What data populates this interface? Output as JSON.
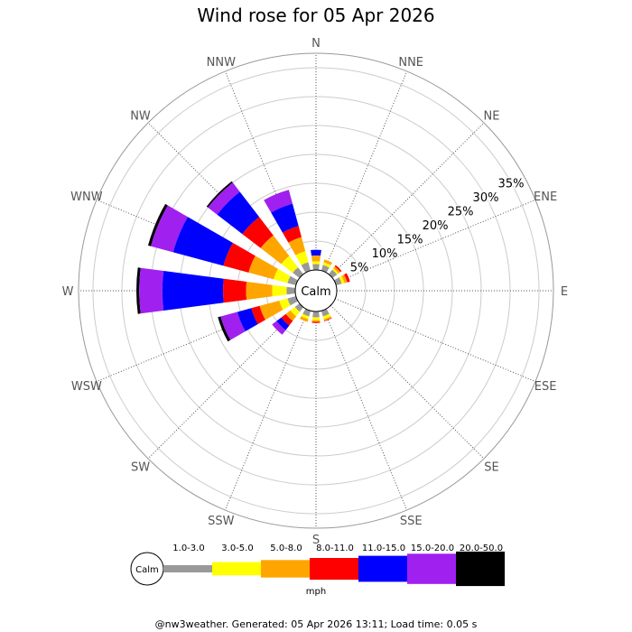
{
  "chart_data": {
    "type": "wind-rose",
    "title": "Wind rose for 05 Apr 2026",
    "directions": [
      "N",
      "NNE",
      "NE",
      "ENE",
      "E",
      "ESE",
      "SE",
      "SSE",
      "S",
      "SSW",
      "SW",
      "WSW",
      "W",
      "WNW",
      "NW",
      "NNW"
    ],
    "rings": [
      "5%",
      "10%",
      "15%",
      "20%",
      "25%",
      "30%",
      "35%"
    ],
    "max_percent": 37.5,
    "calm_label": "Calm",
    "units": "mph",
    "bins": [
      {
        "label": "1.0-3.0",
        "color": "#999999"
      },
      {
        "label": "3.0-5.0",
        "color": "#ffff00"
      },
      {
        "label": "5.0-8.0",
        "color": "#ffa500"
      },
      {
        "label": "8.0-11.0",
        "color": "#ff0000"
      },
      {
        "label": "11.0-15.0",
        "color": "#0000ff"
      },
      {
        "label": "15.0-20.0",
        "color": "#a020f0"
      },
      {
        "label": "20.0-50.0",
        "color": "#000000"
      }
    ],
    "cumulative_percent": [
      [
        1.0,
        1.5,
        2.5,
        2.5,
        3.5,
        3.5,
        3.5
      ],
      [
        1.0,
        1.5,
        2.0,
        2.0,
        2.0,
        2.0,
        2.0
      ],
      [
        1.0,
        1.3,
        1.7,
        2.0,
        2.0,
        2.0,
        2.0
      ],
      [
        1.0,
        1.5,
        2.0,
        2.5,
        2.5,
        2.5,
        2.5
      ],
      [
        0,
        0,
        0,
        0,
        0,
        0,
        0
      ],
      [
        0,
        0,
        0,
        0,
        0,
        0,
        0
      ],
      [
        0,
        0,
        0,
        0,
        0,
        0,
        0
      ],
      [
        1.0,
        1.5,
        1.8,
        1.9,
        1.9,
        1.9,
        1.9
      ],
      [
        1.0,
        1.5,
        1.8,
        2.0,
        2.0,
        2.0,
        2.0
      ],
      [
        1.0,
        1.5,
        2.0,
        2.0,
        2.0,
        2.0,
        2.0
      ],
      [
        1.0,
        2.0,
        3.0,
        4.0,
        5.0,
        6.0,
        6.0
      ],
      [
        1.5,
        3.0,
        6.5,
        8.0,
        10.5,
        13.5,
        14.0
      ],
      [
        1.5,
        4.0,
        8.5,
        12.5,
        23.0,
        27.0,
        27.5
      ],
      [
        1.5,
        4.0,
        8.5,
        13.0,
        22.0,
        26.0,
        26.5
      ],
      [
        1.5,
        4.0,
        8.5,
        12.5,
        18.0,
        20.0,
        20.3
      ],
      [
        1.5,
        3.5,
        6.0,
        8.0,
        12.0,
        14.5,
        14.5
      ]
    ]
  },
  "footer": "@nw3weather. Generated: 05 Apr 2026 13:11; Load time: 0.05 s"
}
